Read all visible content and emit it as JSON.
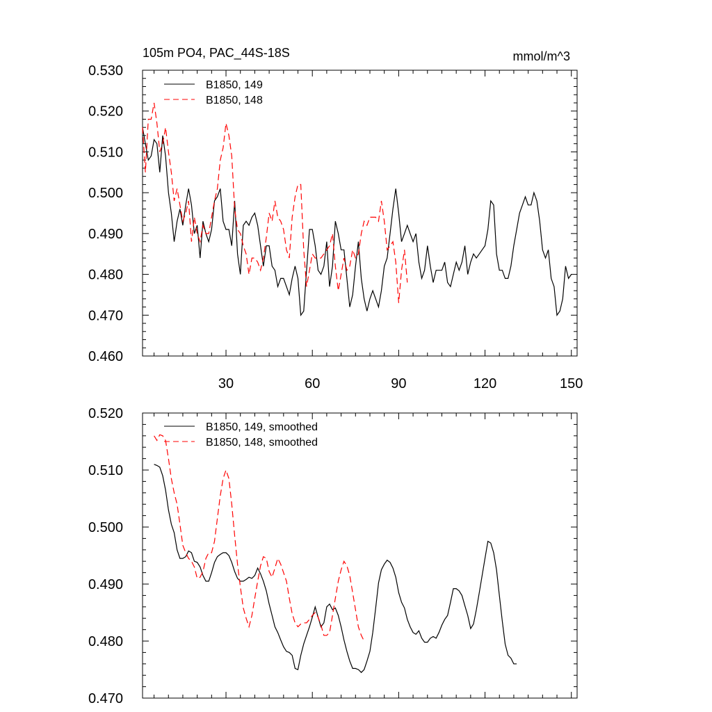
{
  "chart_data": [
    {
      "type": "line",
      "title": "105m PO4, PAC_44S-18S",
      "units": "mmol/m^3",
      "xlim": [
        1,
        152
      ],
      "ylim": [
        0.46,
        0.53
      ],
      "xticks": [
        30,
        60,
        90,
        120,
        150
      ],
      "xtick_labels": [
        "30",
        "60",
        "90",
        "120",
        "150"
      ],
      "yticks": [
        0.46,
        0.47,
        0.48,
        0.49,
        0.5,
        0.51,
        0.52,
        0.53
      ],
      "ytick_labels": [
        "0.460",
        "0.470",
        "0.480",
        "0.490",
        "0.500",
        "0.510",
        "0.520",
        "0.530"
      ],
      "legend_position": "top-left",
      "grid": false,
      "series": [
        {
          "name": "B1850, 149",
          "color": "#000000",
          "dash": "solid",
          "x_start": 1,
          "values": [
            0.516,
            0.512,
            0.508,
            0.509,
            0.513,
            0.512,
            0.505,
            0.514,
            0.509,
            0.5,
            0.495,
            0.488,
            0.493,
            0.496,
            0.492,
            0.497,
            0.501,
            0.497,
            0.49,
            0.492,
            0.484,
            0.493,
            0.49,
            0.488,
            0.491,
            0.498,
            0.499,
            0.501,
            0.493,
            0.491,
            0.491,
            0.487,
            0.498,
            0.485,
            0.48,
            0.492,
            0.493,
            0.492,
            0.494,
            0.495,
            0.492,
            0.487,
            0.482,
            0.487,
            0.487,
            0.482,
            0.481,
            0.477,
            0.479,
            0.479,
            0.477,
            0.475,
            0.479,
            0.482,
            0.479,
            0.47,
            0.471,
            0.481,
            0.491,
            0.491,
            0.487,
            0.481,
            0.48,
            0.482,
            0.488,
            0.477,
            0.482,
            0.493,
            0.49,
            0.486,
            0.486,
            0.479,
            0.472,
            0.475,
            0.482,
            0.488,
            0.479,
            0.474,
            0.471,
            0.474,
            0.476,
            0.474,
            0.472,
            0.476,
            0.482,
            0.484,
            0.49,
            0.496,
            0.501,
            0.495,
            0.488,
            0.49,
            0.492,
            0.49,
            0.488,
            0.49,
            0.483,
            0.479,
            0.481,
            0.487,
            0.482,
            0.478,
            0.481,
            0.481,
            0.481,
            0.483,
            0.478,
            0.477,
            0.48,
            0.483,
            0.481,
            0.483,
            0.487,
            0.48,
            0.483,
            0.485,
            0.484,
            0.485,
            0.486,
            0.487,
            0.491,
            0.498,
            0.497,
            0.485,
            0.481,
            0.481,
            0.479,
            0.479,
            0.482,
            0.487,
            0.491,
            0.495,
            0.497,
            0.499,
            0.497,
            0.497,
            0.5,
            0.498,
            0.493,
            0.486,
            0.484,
            0.486,
            0.479,
            0.477,
            0.47,
            0.471,
            0.474,
            0.482,
            0.479,
            0.48
          ]
        },
        {
          "name": "B1850, 148",
          "color": "#ff0000",
          "dash": "dashed",
          "x_start": 1,
          "values": [
            0.516,
            0.505,
            0.518,
            0.518,
            0.522,
            0.517,
            0.51,
            0.512,
            0.516,
            0.51,
            0.505,
            0.498,
            0.501,
            0.497,
            0.493,
            0.495,
            0.498,
            0.488,
            0.494,
            0.49,
            0.488,
            0.492,
            0.49,
            0.49,
            0.494,
            0.498,
            0.501,
            0.508,
            0.511,
            0.517,
            0.514,
            0.509,
            0.496,
            0.491,
            0.49,
            0.487,
            0.485,
            0.48,
            0.484,
            0.484,
            0.483,
            0.481,
            0.484,
            0.489,
            0.495,
            0.493,
            0.498,
            0.494,
            0.493,
            0.491,
            0.486,
            0.484,
            0.494,
            0.499,
            0.502,
            0.502,
            0.486,
            0.477,
            0.481,
            0.485,
            0.484,
            0.484,
            0.484,
            0.485,
            0.486,
            0.487,
            0.49,
            0.482,
            0.476,
            0.48,
            0.484,
            0.481,
            0.482,
            0.486,
            0.484,
            0.485,
            0.49,
            0.493,
            0.492,
            0.494,
            0.494,
            0.494,
            0.493,
            0.498,
            0.493,
            0.486,
            0.487,
            0.488,
            0.483,
            0.473,
            0.481,
            0.486,
            0.478
          ]
        }
      ]
    },
    {
      "type": "line",
      "title": "",
      "xlim": [
        1,
        152
      ],
      "ylim": [
        0.47,
        0.52
      ],
      "xticks": [
        30,
        60,
        90,
        120,
        150
      ],
      "xtick_labels": [],
      "yticks": [
        0.47,
        0.48,
        0.49,
        0.5,
        0.51,
        0.52
      ],
      "ytick_labels": [
        "0.470",
        "0.480",
        "0.490",
        "0.500",
        "0.510",
        "0.520"
      ],
      "legend_position": "top-left",
      "grid": false,
      "series": [
        {
          "name": "B1850, 149, smoothed",
          "color": "#000000",
          "dash": "solid",
          "x_start": 5,
          "values": [
            0.511,
            0.5108,
            0.5105,
            0.509,
            0.5065,
            0.503,
            0.5005,
            0.499,
            0.496,
            0.4945,
            0.4945,
            0.4948,
            0.4958,
            0.4955,
            0.494,
            0.4938,
            0.493,
            0.4915,
            0.4905,
            0.4905,
            0.492,
            0.4938,
            0.4948,
            0.4952,
            0.4955,
            0.4955,
            0.495,
            0.4938,
            0.4922,
            0.491,
            0.4905,
            0.4905,
            0.4908,
            0.4912,
            0.491,
            0.4915,
            0.4928,
            0.4918,
            0.4905,
            0.4888,
            0.4865,
            0.4845,
            0.4825,
            0.4815,
            0.4802,
            0.479,
            0.4782,
            0.478,
            0.4775,
            0.4752,
            0.475,
            0.4775,
            0.4795,
            0.481,
            0.4825,
            0.4842,
            0.486,
            0.4842,
            0.4825,
            0.4832,
            0.486,
            0.4865,
            0.4855,
            0.4858,
            0.4845,
            0.4825,
            0.4802,
            0.4782,
            0.4765,
            0.4752,
            0.4752,
            0.475,
            0.4745,
            0.475,
            0.4765,
            0.4782,
            0.4815,
            0.4858,
            0.4902,
            0.4925,
            0.4935,
            0.4942,
            0.4938,
            0.4928,
            0.4912,
            0.4885,
            0.4868,
            0.4858,
            0.4838,
            0.4825,
            0.4815,
            0.4812,
            0.4818,
            0.4805,
            0.4798,
            0.4798,
            0.4805,
            0.4808,
            0.4805,
            0.4815,
            0.4828,
            0.4838,
            0.4845,
            0.4868,
            0.4892,
            0.4892,
            0.4888,
            0.488,
            0.4862,
            0.4845,
            0.4822,
            0.483,
            0.4855,
            0.4885,
            0.4915,
            0.4945,
            0.4975,
            0.4972,
            0.4955,
            0.4925,
            0.488,
            0.4835,
            0.4795,
            0.4775,
            0.477,
            0.476,
            0.476
          ]
        },
        {
          "name": "B1850, 148, smoothed",
          "color": "#ff0000",
          "dash": "dashed",
          "x_start": 5,
          "values": [
            0.516,
            0.5152,
            0.5162,
            0.516,
            0.5152,
            0.512,
            0.5085,
            0.506,
            0.504,
            0.5005,
            0.4968,
            0.4955,
            0.4945,
            0.494,
            0.493,
            0.491,
            0.4912,
            0.4922,
            0.4945,
            0.4955,
            0.4955,
            0.4975,
            0.5015,
            0.5055,
            0.5085,
            0.51,
            0.5085,
            0.504,
            0.4985,
            0.4935,
            0.4895,
            0.4858,
            0.484,
            0.4825,
            0.4845,
            0.4875,
            0.4905,
            0.4932,
            0.4948,
            0.4945,
            0.4922,
            0.4912,
            0.4928,
            0.4945,
            0.4935,
            0.492,
            0.4905,
            0.4875,
            0.4848,
            0.4832,
            0.4825,
            0.483,
            0.4832,
            0.4832,
            0.4838,
            0.4845,
            0.485,
            0.4842,
            0.4828,
            0.481,
            0.481,
            0.4815,
            0.4845,
            0.4875,
            0.4905,
            0.4925,
            0.494,
            0.4932,
            0.4915,
            0.4885,
            0.4855,
            0.4825,
            0.481,
            0.48
          ]
        }
      ]
    }
  ]
}
